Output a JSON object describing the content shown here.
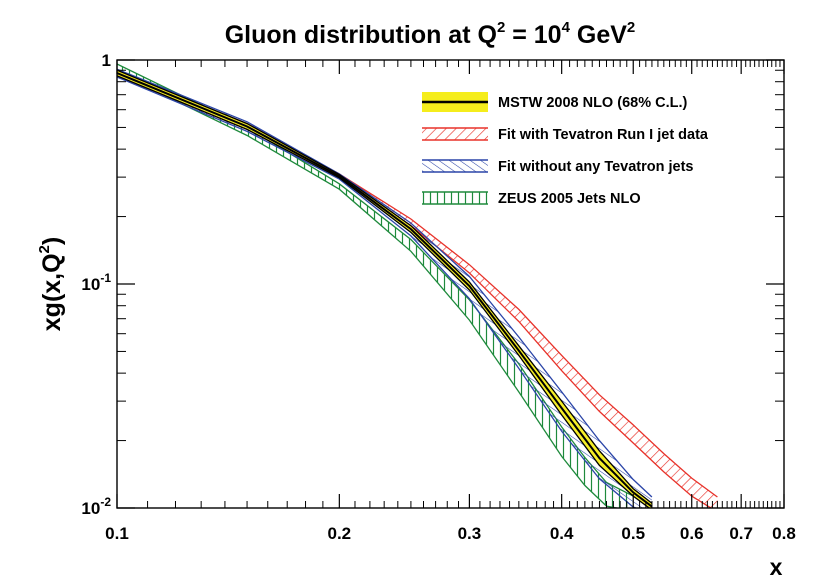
{
  "chart_data": {
    "type": "area",
    "title": {
      "base": "Gluon distribution at Q",
      "sup1": "2",
      "mid": " = 10",
      "sup2": "4",
      "end": " GeV",
      "sup3": "2"
    },
    "xlabel": "x",
    "ylabel": {
      "base": "xg(x,Q",
      "sup": "2",
      "end": ")"
    },
    "x_scale": "log",
    "y_scale": "log",
    "xlim": [
      0.1,
      0.8
    ],
    "ylim": [
      0.01,
      1
    ],
    "x_tick_labels": [
      "0.1",
      "0.2",
      "0.3",
      "0.4",
      "0.5",
      "0.6",
      "0.7",
      "0.8"
    ],
    "y_tick_labels": [
      {
        "base": "1",
        "sup": ""
      },
      {
        "base": "10",
        "sup": "-1"
      },
      {
        "base": "10",
        "sup": "-2"
      }
    ],
    "legend_position": "top-right",
    "grid": false,
    "series": [
      {
        "name": "MSTW 2008 NLO (68% C.L.)",
        "fill": "#f5ed1c",
        "edge": "#000000",
        "hatch": "solid",
        "x": [
          0.1,
          0.15,
          0.2,
          0.25,
          0.3,
          0.35,
          0.4,
          0.45,
          0.5,
          0.53
        ],
        "lower": [
          0.85,
          0.49,
          0.298,
          0.17,
          0.094,
          0.048,
          0.026,
          0.0155,
          0.0113,
          0.0098
        ],
        "upper": [
          0.9,
          0.52,
          0.308,
          0.182,
          0.102,
          0.053,
          0.03,
          0.018,
          0.0122,
          0.0105
        ]
      },
      {
        "name": "Fit with Tevatron Run I jet data",
        "fill": "none",
        "edge": "#e8322a",
        "hatch": "diagonal",
        "x": [
          0.1,
          0.15,
          0.2,
          0.25,
          0.3,
          0.35,
          0.4,
          0.45,
          0.5,
          0.55,
          0.6,
          0.65
        ],
        "lower": [
          0.85,
          0.49,
          0.3,
          0.182,
          0.112,
          0.068,
          0.041,
          0.027,
          0.0195,
          0.0145,
          0.0113,
          0.0096
        ],
        "upper": [
          0.89,
          0.52,
          0.31,
          0.195,
          0.122,
          0.077,
          0.048,
          0.032,
          0.0235,
          0.0175,
          0.0136,
          0.0112
        ]
      },
      {
        "name": "Fit without any Tevatron jets",
        "fill": "none",
        "edge": "#2b45a8",
        "hatch": "diagonal-reverse",
        "x": [
          0.1,
          0.15,
          0.2,
          0.25,
          0.3,
          0.35,
          0.4,
          0.45,
          0.5,
          0.53
        ],
        "lower": [
          0.84,
          0.48,
          0.294,
          0.164,
          0.086,
          0.042,
          0.022,
          0.0135,
          0.0101,
          0.0094
        ],
        "upper": [
          0.91,
          0.53,
          0.31,
          0.187,
          0.108,
          0.058,
          0.033,
          0.02,
          0.0134,
          0.0112
        ]
      },
      {
        "name": "ZEUS 2005 Jets NLO",
        "fill": "none",
        "edge": "#1e8a3c",
        "hatch": "vertical",
        "x": [
          0.1,
          0.15,
          0.2,
          0.25,
          0.3,
          0.35,
          0.4,
          0.43,
          0.46,
          0.5
        ],
        "lower": [
          0.88,
          0.46,
          0.265,
          0.14,
          0.069,
          0.033,
          0.017,
          0.0126,
          0.0102,
          0.0097
        ],
        "upper": [
          0.96,
          0.5,
          0.28,
          0.158,
          0.085,
          0.044,
          0.023,
          0.0168,
          0.013,
          0.0113
        ]
      }
    ]
  }
}
